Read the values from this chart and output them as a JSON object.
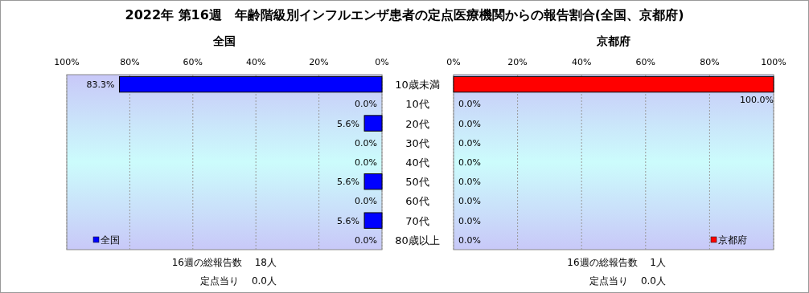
{
  "chart_data": [
    {
      "type": "bar",
      "orientation": "horizontal",
      "title": "2022年 第16週　年齢階級別インフルエンザ患者の定点医療機関からの報告割合(全国、京都府)",
      "subtitle": "全国",
      "categories": [
        "10歳未満",
        "10代",
        "20代",
        "30代",
        "40代",
        "50代",
        "60代",
        "70代",
        "80歳以上"
      ],
      "series": [
        {
          "name": "全国",
          "color": "#0000ff",
          "values": [
            83.3,
            0,
            5.6,
            0,
            0,
            5.6,
            0,
            5.6,
            0
          ],
          "value_labels": [
            "83.3%",
            "0.0%",
            "5.6%",
            "0.0%",
            "0.0%",
            "5.6%",
            "0.0%",
            "5.6%",
            "0.0%"
          ]
        }
      ],
      "xlim": [
        100,
        0
      ],
      "xticks": [
        {
          "value": 100,
          "label": "100%"
        },
        {
          "value": 80,
          "label": "80%"
        },
        {
          "value": 60,
          "label": "60%"
        },
        {
          "value": 40,
          "label": "40%"
        },
        {
          "value": 20,
          "label": "20%"
        },
        {
          "value": 0,
          "label": "0%"
        }
      ],
      "grid": "x",
      "legend": "bottom left",
      "annotations": [
        "16週の総報告数　 18人",
        "定点当り　 0.0人"
      ]
    },
    {
      "type": "bar",
      "orientation": "horizontal",
      "subtitle": "京都府",
      "categories": [
        null,
        null,
        null,
        null,
        null,
        null,
        null,
        null,
        null
      ],
      "series": [
        {
          "name": "京都府",
          "color": "#ff0000",
          "values": [
            100,
            0,
            0,
            0,
            0,
            0,
            0,
            0,
            0
          ],
          "value_labels": [
            "100.0%",
            "0.0%",
            "0.0%",
            "0.0%",
            "0.0%",
            "0.0%",
            "0.0%",
            "0.0%",
            "0.0%"
          ]
        }
      ],
      "xlim": [
        0,
        100
      ],
      "xticks": [
        {
          "value": 0,
          "label": "0%"
        },
        {
          "value": 20,
          "label": "20%"
        },
        {
          "value": 40,
          "label": "40%"
        },
        {
          "value": 60,
          "label": "60%"
        },
        {
          "value": 80,
          "label": "80%"
        },
        {
          "value": 100,
          "label": "100%"
        }
      ],
      "grid": "x",
      "legend": "bottom right",
      "annotations": [
        "16週の総報告数　 1人",
        "定点当り　 0.0人"
      ]
    }
  ]
}
